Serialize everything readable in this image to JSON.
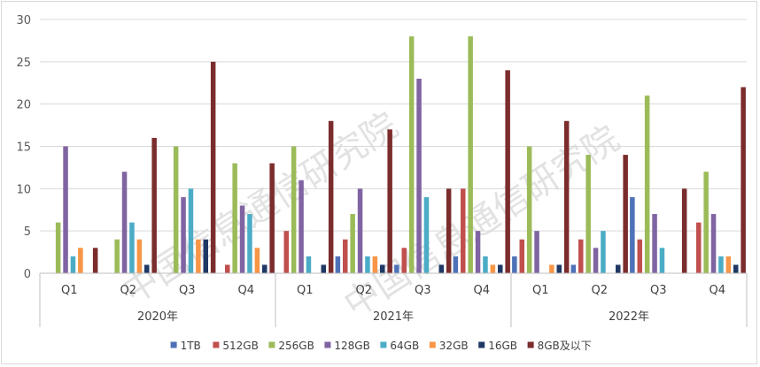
{
  "chart_data": {
    "type": "bar",
    "title": "",
    "xlabel": "",
    "ylabel": "",
    "ylim": [
      0,
      30
    ],
    "yticks": [
      0,
      5,
      10,
      15,
      20,
      25,
      30
    ],
    "grid": true,
    "legend_position": "bottom",
    "groups": [
      {
        "label": "2020年",
        "quarters": [
          "Q1",
          "Q2",
          "Q3",
          "Q4"
        ]
      },
      {
        "label": "2021年",
        "quarters": [
          "Q1",
          "Q2",
          "Q3",
          "Q4"
        ]
      },
      {
        "label": "2022年",
        "quarters": [
          "Q1",
          "Q2",
          "Q3",
          "Q4"
        ]
      }
    ],
    "series": [
      {
        "name": "1TB",
        "color": "#4e72b8",
        "values": [
          0,
          0,
          0,
          0,
          0,
          2,
          1,
          2,
          2,
          1,
          9,
          0
        ]
      },
      {
        "name": "512GB",
        "color": "#c0504d",
        "values": [
          0,
          0,
          0,
          1,
          5,
          4,
          3,
          10,
          4,
          4,
          4,
          6
        ]
      },
      {
        "name": "256GB",
        "color": "#9bbb59",
        "values": [
          6,
          4,
          15,
          13,
          15,
          7,
          28,
          28,
          15,
          14,
          21,
          12
        ]
      },
      {
        "name": "128GB",
        "color": "#8064a2",
        "values": [
          15,
          12,
          9,
          8,
          11,
          10,
          23,
          5,
          5,
          3,
          7,
          7
        ]
      },
      {
        "name": "64GB",
        "color": "#4bacc6",
        "values": [
          2,
          6,
          10,
          7,
          2,
          2,
          9,
          2,
          0,
          5,
          3,
          2
        ]
      },
      {
        "name": "32GB",
        "color": "#f79646",
        "values": [
          3,
          4,
          4,
          3,
          0,
          2,
          0,
          1,
          1,
          0,
          0,
          2
        ]
      },
      {
        "name": "16GB",
        "color": "#1f3864",
        "values": [
          0,
          1,
          4,
          1,
          1,
          1,
          1,
          1,
          1,
          1,
          0,
          1
        ]
      },
      {
        "name": "8GB及以下",
        "color": "#7b2c2c",
        "values": [
          3,
          16,
          25,
          13,
          18,
          17,
          10,
          24,
          18,
          14,
          10,
          22
        ]
      }
    ]
  },
  "watermark": "中国信息通信研究院",
  "colors": {
    "grid": "#d9d9d9",
    "axis": "#bfbfbf",
    "text": "#595959"
  }
}
